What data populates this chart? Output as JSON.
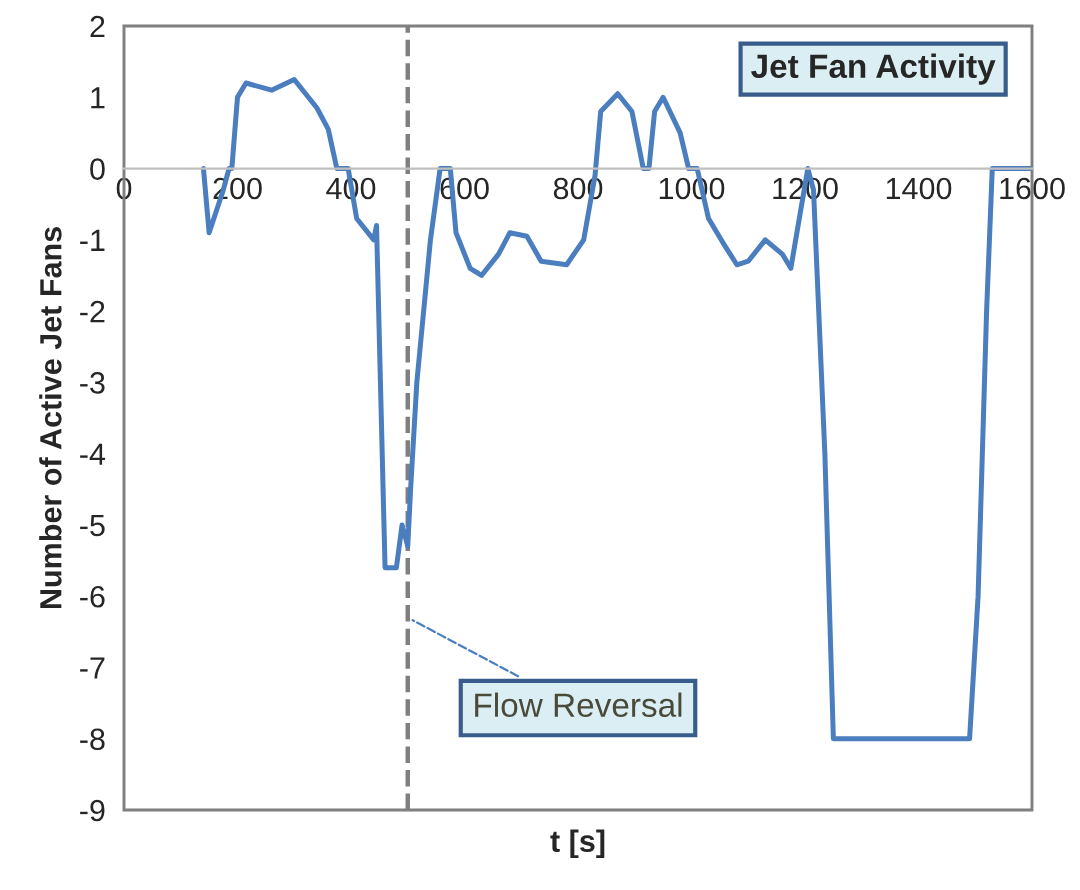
{
  "chart_data": {
    "type": "line",
    "title": "Jet Fan Activity",
    "xlabel": "t [s]",
    "ylabel": "Number of Active Jet Fans",
    "series": [
      {
        "color": "#4a7ebf",
        "x": [
          140,
          150,
          175,
          185,
          190,
          200,
          215,
          260,
          300,
          340,
          360,
          375,
          395,
          410,
          440,
          445,
          460,
          480,
          490,
          500,
          505,
          516,
          540,
          557,
          575,
          585,
          610,
          630,
          660,
          680,
          710,
          735,
          780,
          810,
          830,
          840,
          870,
          895,
          915,
          925,
          935,
          950,
          980,
          995,
          1010,
          1030,
          1060,
          1080,
          1100,
          1130,
          1160,
          1175,
          1190,
          1205,
          1215,
          1235,
          1250,
          1490,
          1505,
          1520,
          1530,
          1600
        ],
        "values": [
          0,
          -0.9,
          -0.3,
          0,
          0,
          1.0,
          1.2,
          1.1,
          1.25,
          0.85,
          0.55,
          0,
          0,
          -0.7,
          -1.0,
          -0.8,
          -5.6,
          -5.6,
          -5.0,
          -5.3,
          -4.5,
          -3.0,
          -1.0,
          0,
          0,
          -0.9,
          -1.4,
          -1.5,
          -1.2,
          -0.9,
          -0.95,
          -1.3,
          -1.35,
          -1.0,
          -0.1,
          0.8,
          1.05,
          0.8,
          0,
          0,
          0.8,
          1.0,
          0.5,
          0,
          0,
          -0.7,
          -1.1,
          -1.35,
          -1.3,
          -1.0,
          -1.2,
          -1.4,
          -0.7,
          0,
          -0.3,
          -4,
          -8,
          -8,
          -6,
          -2,
          0,
          0
        ]
      }
    ],
    "xlim": [
      0,
      1600
    ],
    "xticks": [
      0,
      200,
      400,
      600,
      800,
      1000,
      1200,
      1400,
      1600
    ],
    "ylim": [
      -9,
      2
    ],
    "yticks": [
      -9,
      -8,
      -7,
      -6,
      -5,
      -4,
      -3,
      -2,
      -1,
      0,
      1,
      2
    ],
    "ref_lines": [
      {
        "axis": "x",
        "value": 500,
        "color": "#7f7f7f",
        "line_style": "dashed"
      }
    ],
    "annotations": [
      {
        "text": "Flow Reversal",
        "x": 500,
        "y": -6.3
      }
    ],
    "grid": false,
    "legend": false,
    "marker": "none",
    "line_style": "solid"
  }
}
